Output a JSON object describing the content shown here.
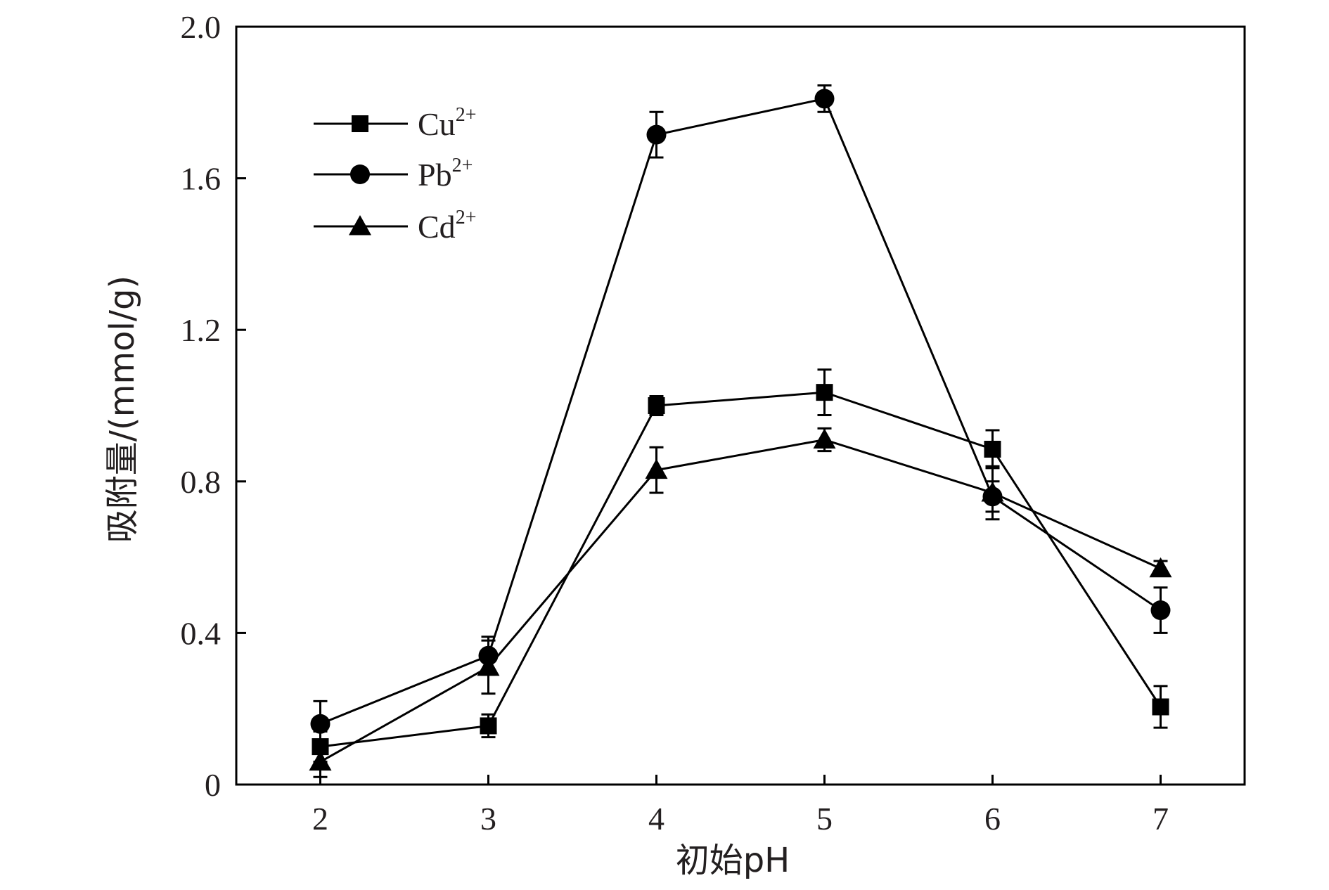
{
  "chart_data": {
    "type": "line",
    "title": "",
    "xlabel": "初始pH",
    "ylabel": "吸附量/(mmol/g)",
    "x": [
      2,
      3,
      4,
      5,
      6,
      7
    ],
    "xlim": [
      1.5,
      7.5
    ],
    "ylim": [
      0,
      2.0
    ],
    "xticks": [
      "2",
      "3",
      "4",
      "5",
      "6",
      "7"
    ],
    "yticks": [
      "0",
      "0.4",
      "0.8",
      "1.2",
      "1.6",
      "2.0"
    ],
    "ytick_values": [
      0,
      0.4,
      0.8,
      1.2,
      1.6,
      2.0
    ],
    "grid": false,
    "legend_position": "top-left",
    "series": [
      {
        "name": "Cu",
        "name_sup": "2+",
        "marker": "square",
        "values": [
          0.1,
          0.155,
          1.0,
          1.035,
          0.885,
          0.205
        ],
        "errors": [
          0.04,
          0.03,
          0.025,
          0.06,
          0.05,
          0.055
        ]
      },
      {
        "name": "Pb",
        "name_sup": "2+",
        "marker": "circle",
        "values": [
          0.16,
          0.34,
          1.715,
          1.81,
          0.76,
          0.46
        ],
        "errors": [
          0.06,
          0.05,
          0.06,
          0.035,
          0.04,
          0.06
        ]
      },
      {
        "name": "Cd",
        "name_sup": "2+",
        "marker": "triangle",
        "values": [
          0.06,
          0.31,
          0.83,
          0.91,
          0.77,
          0.57
        ],
        "errors": [
          0.04,
          0.07,
          0.06,
          0.03,
          0.07,
          0.02
        ]
      }
    ],
    "colors": {
      "line": "#000000",
      "text": "#231f20"
    }
  }
}
